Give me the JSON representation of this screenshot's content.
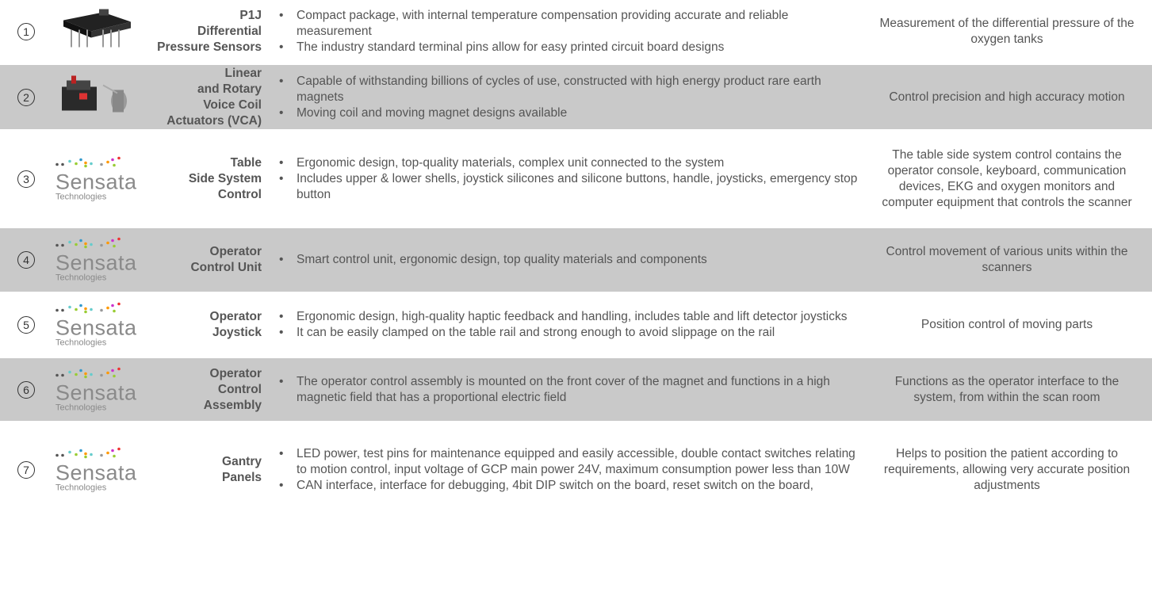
{
  "rows": [
    {
      "num": "1",
      "name": [
        "P1J",
        "Differential",
        "Pressure Sensors"
      ],
      "bullets": [
        "Compact package, with internal temperature compensation providing accurate and reliable measurement",
        "The industry standard terminal pins allow for easy printed circuit board designs"
      ],
      "application": "Measurement of the differential pressure of the oxygen tanks"
    },
    {
      "num": "2",
      "name": [
        "Linear",
        "and Rotary",
        "Voice Coil",
        "Actuators (VCA)"
      ],
      "bullets": [
        "Capable of withstanding billions of cycles of use, constructed with high energy product rare earth magnets",
        "Moving coil and moving magnet designs available"
      ],
      "application": "Control precision and high accuracy motion"
    },
    {
      "num": "3",
      "logo": [
        "Sensata",
        "Technologies"
      ],
      "name": [
        "Table",
        "Side System",
        "Control"
      ],
      "bullets": [
        "Ergonomic design, top-quality materials, complex unit connected to the system",
        "Includes upper & lower shells, joystick silicones and silicone buttons, handle, joysticks, emergency stop button"
      ],
      "application": "The table side system control contains the operator console, keyboard, communication devices, EKG and oxygen monitors and computer equipment that controls the scanner"
    },
    {
      "num": "4",
      "logo": [
        "Sensata",
        "Technologies"
      ],
      "name": [
        "Operator",
        "Control Unit"
      ],
      "bullets": [
        "Smart control unit, ergonomic design, top quality materials and components"
      ],
      "application": "Control movement of various units within the scanners"
    },
    {
      "num": "5",
      "logo": [
        "Sensata",
        "Technologies"
      ],
      "name": [
        "Operator",
        "Joystick"
      ],
      "bullets": [
        "Ergonomic design, high-quality haptic feedback and handling, includes table and lift detector joysticks",
        "It can be easily clamped on the table rail and strong enough to avoid slippage on the rail"
      ],
      "application": "Position control of moving parts"
    },
    {
      "num": "6",
      "logo": [
        "Sensata",
        "Technologies"
      ],
      "name": [
        "Operator",
        "Control",
        "Assembly"
      ],
      "bullets": [
        "The operator control assembly is mounted on the front cover of the magnet and functions in a high magnetic field that has a proportional electric field"
      ],
      "application": "Functions as the operator interface to the system, from within the scan room"
    },
    {
      "num": "7",
      "logo": [
        "Sensata",
        "Technologies"
      ],
      "name": [
        "Gantry",
        "Panels"
      ],
      "bullets": [
        "LED power, test pins for maintenance equipped and easily accessible, double contact switches relating to motion control, input voltage of GCP main power 24V, maximum consumption power less than 10W",
        "CAN interface, interface for debugging, 4bit DIP switch on the board, reset switch on the board,"
      ],
      "application": "Helps to position the patient according to requirements, allowing very accurate position adjustments"
    }
  ]
}
